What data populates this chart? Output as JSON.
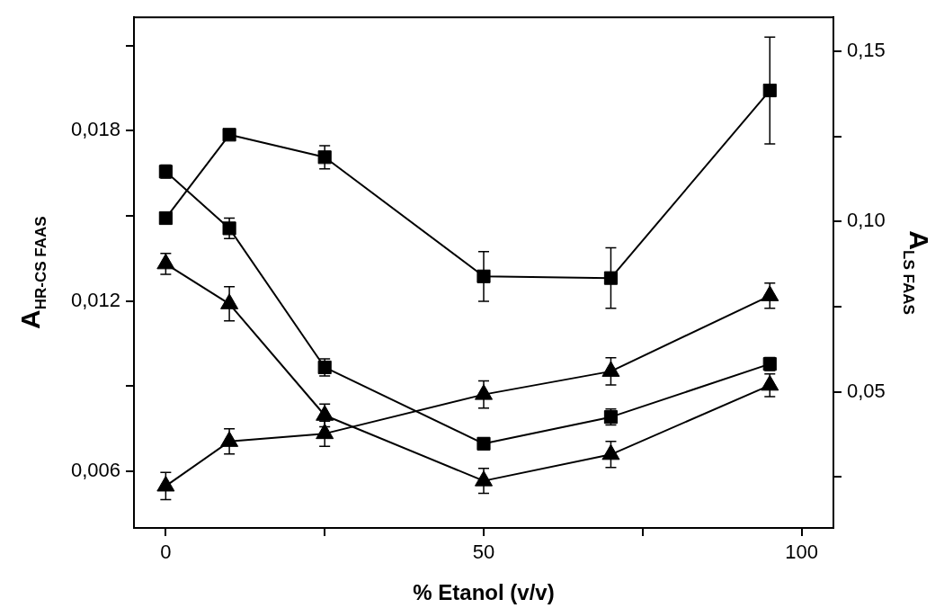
{
  "chart_data": {
    "type": "line",
    "xlabel": "% Etanol (v/v)",
    "ylabel": "A$_{HR-CS FAAS}$",
    "y2label": "A$_{LS FAAS}$",
    "x": [
      0,
      10,
      25,
      50,
      70,
      95
    ],
    "xlim": [
      -5,
      105
    ],
    "xticks": [
      0,
      {
        "value": 25,
        "label": null
      },
      50,
      {
        "value": 75,
        "label": null
      },
      100
    ],
    "ylim": [
      0.004,
      0.022
    ],
    "yticks": [
      {
        "value": 0.006,
        "label": "0,006"
      },
      {
        "value": 0.009,
        "label": null
      },
      {
        "value": 0.012,
        "label": "0,012"
      },
      {
        "value": 0.015,
        "label": null
      },
      {
        "value": 0.018,
        "label": "0,018"
      },
      {
        "value": 0.021,
        "label": null
      }
    ],
    "y2lim": [
      0.01,
      0.16
    ],
    "y2ticks": [
      {
        "value": 0.025,
        "label": null
      },
      {
        "value": 0.05,
        "label": "0,05"
      },
      {
        "value": 0.075,
        "label": null
      },
      {
        "value": 0.1,
        "label": "0,10"
      },
      {
        "value": 0.125,
        "label": null
      },
      {
        "value": 0.15,
        "label": "0,15"
      }
    ],
    "legend": false,
    "line_style": "solid",
    "series": [
      {
        "color": "#000000",
        "marker": "square",
        "axis": "y2",
        "values": [
          0.101,
          0.1255,
          0.1189,
          0.0839,
          0.0834,
          0.1385
        ],
        "errors": [
          null,
          null,
          0.0034,
          0.0073,
          0.0089,
          0.0157
        ]
      },
      {
        "color": "#000000",
        "marker": "triangle",
        "axis": "y2",
        "values": [
          0.0223,
          0.0354,
          0.0377,
          0.0492,
          0.056,
          0.0782
        ],
        "errors": [
          0.004,
          0.0037,
          0.0037,
          0.004,
          0.004,
          0.0037
        ]
      },
      {
        "color": "#000000",
        "marker": "square",
        "values": [
          0.01656,
          0.01456,
          0.00966,
          0.00697,
          0.00791,
          0.00978
        ],
        "errors": [
          0.00023,
          0.00036,
          0.0003,
          0.0002,
          0.00028,
          0.00023
        ]
      },
      {
        "color": "#000000",
        "marker": "triangle",
        "values": [
          0.01331,
          0.0119,
          0.00797,
          0.00566,
          0.00659,
          0.00903
        ],
        "errors": [
          0.00037,
          0.0006,
          0.0004,
          0.00044,
          0.00046,
          0.0004
        ]
      }
    ]
  }
}
